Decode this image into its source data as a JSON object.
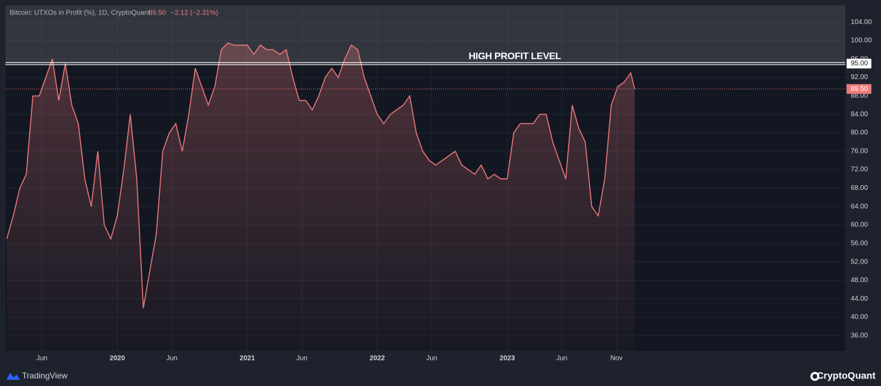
{
  "chart_data": {
    "type": "line",
    "title": "Bitcoin: UTXOs in Profit (%), 1D, CryptoQuant",
    "last_value": {
      "value": 89.5,
      "label": "89.50"
    },
    "change": "−2.12 (−2.31%)",
    "color": "#f07b7b",
    "x": [
      2019.15,
      2019.2,
      2019.25,
      2019.3,
      2019.35,
      2019.4,
      2019.45,
      2019.5,
      2019.55,
      2019.6,
      2019.65,
      2019.7,
      2019.75,
      2019.8,
      2019.85,
      2019.9,
      2019.95,
      2020.0,
      2020.05,
      2020.1,
      2020.15,
      2020.2,
      2020.25,
      2020.3,
      2020.35,
      2020.4,
      2020.45,
      2020.5,
      2020.55,
      2020.6,
      2020.65,
      2020.7,
      2020.75,
      2020.8,
      2020.85,
      2020.9,
      2020.95,
      2021.0,
      2021.05,
      2021.1,
      2021.15,
      2021.2,
      2021.25,
      2021.3,
      2021.35,
      2021.4,
      2021.45,
      2021.5,
      2021.55,
      2021.6,
      2021.65,
      2021.7,
      2021.75,
      2021.8,
      2021.85,
      2021.9,
      2021.95,
      2022.0,
      2022.05,
      2022.1,
      2022.15,
      2022.2,
      2022.25,
      2022.3,
      2022.35,
      2022.4,
      2022.45,
      2022.5,
      2022.55,
      2022.6,
      2022.65,
      2022.7,
      2022.75,
      2022.8,
      2022.85,
      2022.9,
      2022.95,
      2023.0,
      2023.05,
      2023.1,
      2023.15,
      2023.2,
      2023.25,
      2023.3,
      2023.35,
      2023.4,
      2023.45,
      2023.5,
      2023.55,
      2023.6,
      2023.65,
      2023.7,
      2023.75,
      2023.8,
      2023.85,
      2023.9,
      2023.95,
      2023.98
    ],
    "values": [
      57,
      62,
      68,
      71,
      88,
      88,
      92,
      96,
      87,
      95,
      86,
      82,
      70,
      64,
      76,
      60,
      57,
      62,
      72,
      84,
      70,
      42,
      50,
      58,
      76,
      80,
      82,
      76,
      84,
      94,
      90,
      86,
      90,
      98,
      99.5,
      99,
      99,
      99,
      97,
      99,
      98,
      98,
      97,
      98,
      92,
      87,
      87,
      85,
      88,
      92,
      94,
      92,
      96,
      99,
      98,
      92,
      88,
      84,
      82,
      84,
      85,
      86,
      88,
      80,
      76,
      74,
      73,
      74,
      75,
      76,
      73,
      72,
      71,
      73,
      70,
      71,
      70,
      70,
      80,
      82,
      82,
      82,
      84,
      84,
      78,
      74,
      70,
      86,
      81,
      78,
      64,
      62,
      70,
      86,
      90,
      91,
      93,
      89.5
    ],
    "xlim": [
      2019.14,
      2025.6
    ],
    "ylim": [
      32.7,
      107.6
    ],
    "xticks": [
      {
        "value": 2019.42,
        "label": "Jun"
      },
      2020,
      {
        "value": 2020.42,
        "label": "Jun"
      },
      2021,
      {
        "value": 2021.42,
        "label": "Jun"
      },
      2022,
      {
        "value": 2022.42,
        "label": "Jun"
      },
      2023,
      {
        "value": 2023.42,
        "label": "Jun"
      },
      {
        "value": 2023.84,
        "label": "Nov"
      }
    ],
    "yticks": [
      {
        "value": 36,
        "label": "36.00"
      },
      {
        "value": 40,
        "label": "40.00"
      },
      {
        "value": 44,
        "label": "44.00"
      },
      {
        "value": 48,
        "label": "48.00"
      },
      {
        "value": 52,
        "label": "52.00"
      },
      {
        "value": 56,
        "label": "56.00"
      },
      {
        "value": 60,
        "label": "60.00"
      },
      {
        "value": 64,
        "label": "64.00"
      },
      {
        "value": 68,
        "label": "68.00"
      },
      {
        "value": 72,
        "label": "72.00"
      },
      {
        "value": 76,
        "label": "76.00"
      },
      {
        "value": 80,
        "label": "80.00"
      },
      {
        "value": 84,
        "label": "84.00"
      },
      {
        "value": 88,
        "label": "88.00"
      },
      {
        "value": 92,
        "label": "92.00"
      },
      {
        "value": 96,
        "label": "96.00"
      },
      {
        "value": 100,
        "label": "100.00"
      },
      {
        "value": 104,
        "label": "104.00"
      }
    ],
    "grid": true,
    "hline": {
      "value": 95,
      "label": "95.00",
      "annotation": "HIGH PROFIT LEVEL"
    }
  },
  "footer": {
    "left": "TradingView",
    "right": "CryptoQuant"
  }
}
